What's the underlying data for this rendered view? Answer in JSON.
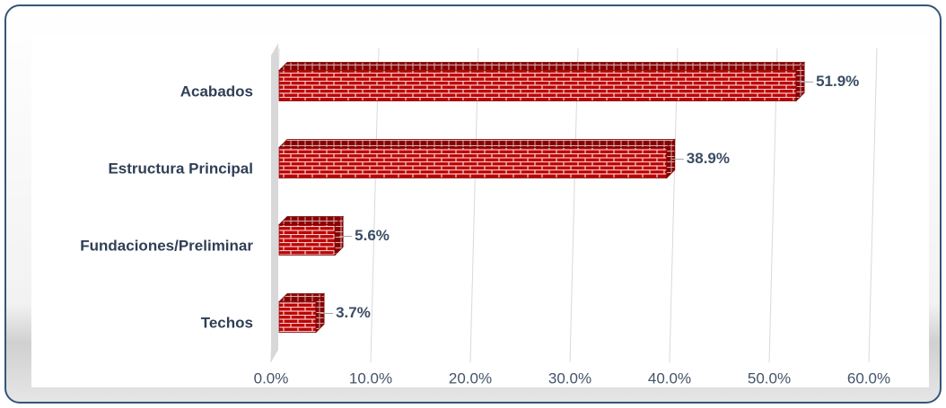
{
  "chart_data": {
    "type": "hbar",
    "categories": [
      "Acabados",
      "Estructura Principal",
      "Fundaciones/Preliminar",
      "Techos"
    ],
    "values": [
      51.9,
      38.9,
      5.6,
      3.7
    ],
    "value_labels": [
      "51.9%",
      "38.9%",
      "5.6%",
      "3.7%"
    ],
    "color": "#c00000",
    "xlim": [
      0,
      60
    ],
    "xticks": [
      {
        "value": 0,
        "label": "0.0%"
      },
      {
        "value": 10,
        "label": "10.0%"
      },
      {
        "value": 20,
        "label": "20.0%"
      },
      {
        "value": 30,
        "label": "30.0%"
      },
      {
        "value": 40,
        "label": "40.0%"
      },
      {
        "value": 50,
        "label": "50.0%"
      },
      {
        "value": 60,
        "label": "60.0%"
      }
    ],
    "grid": true
  }
}
